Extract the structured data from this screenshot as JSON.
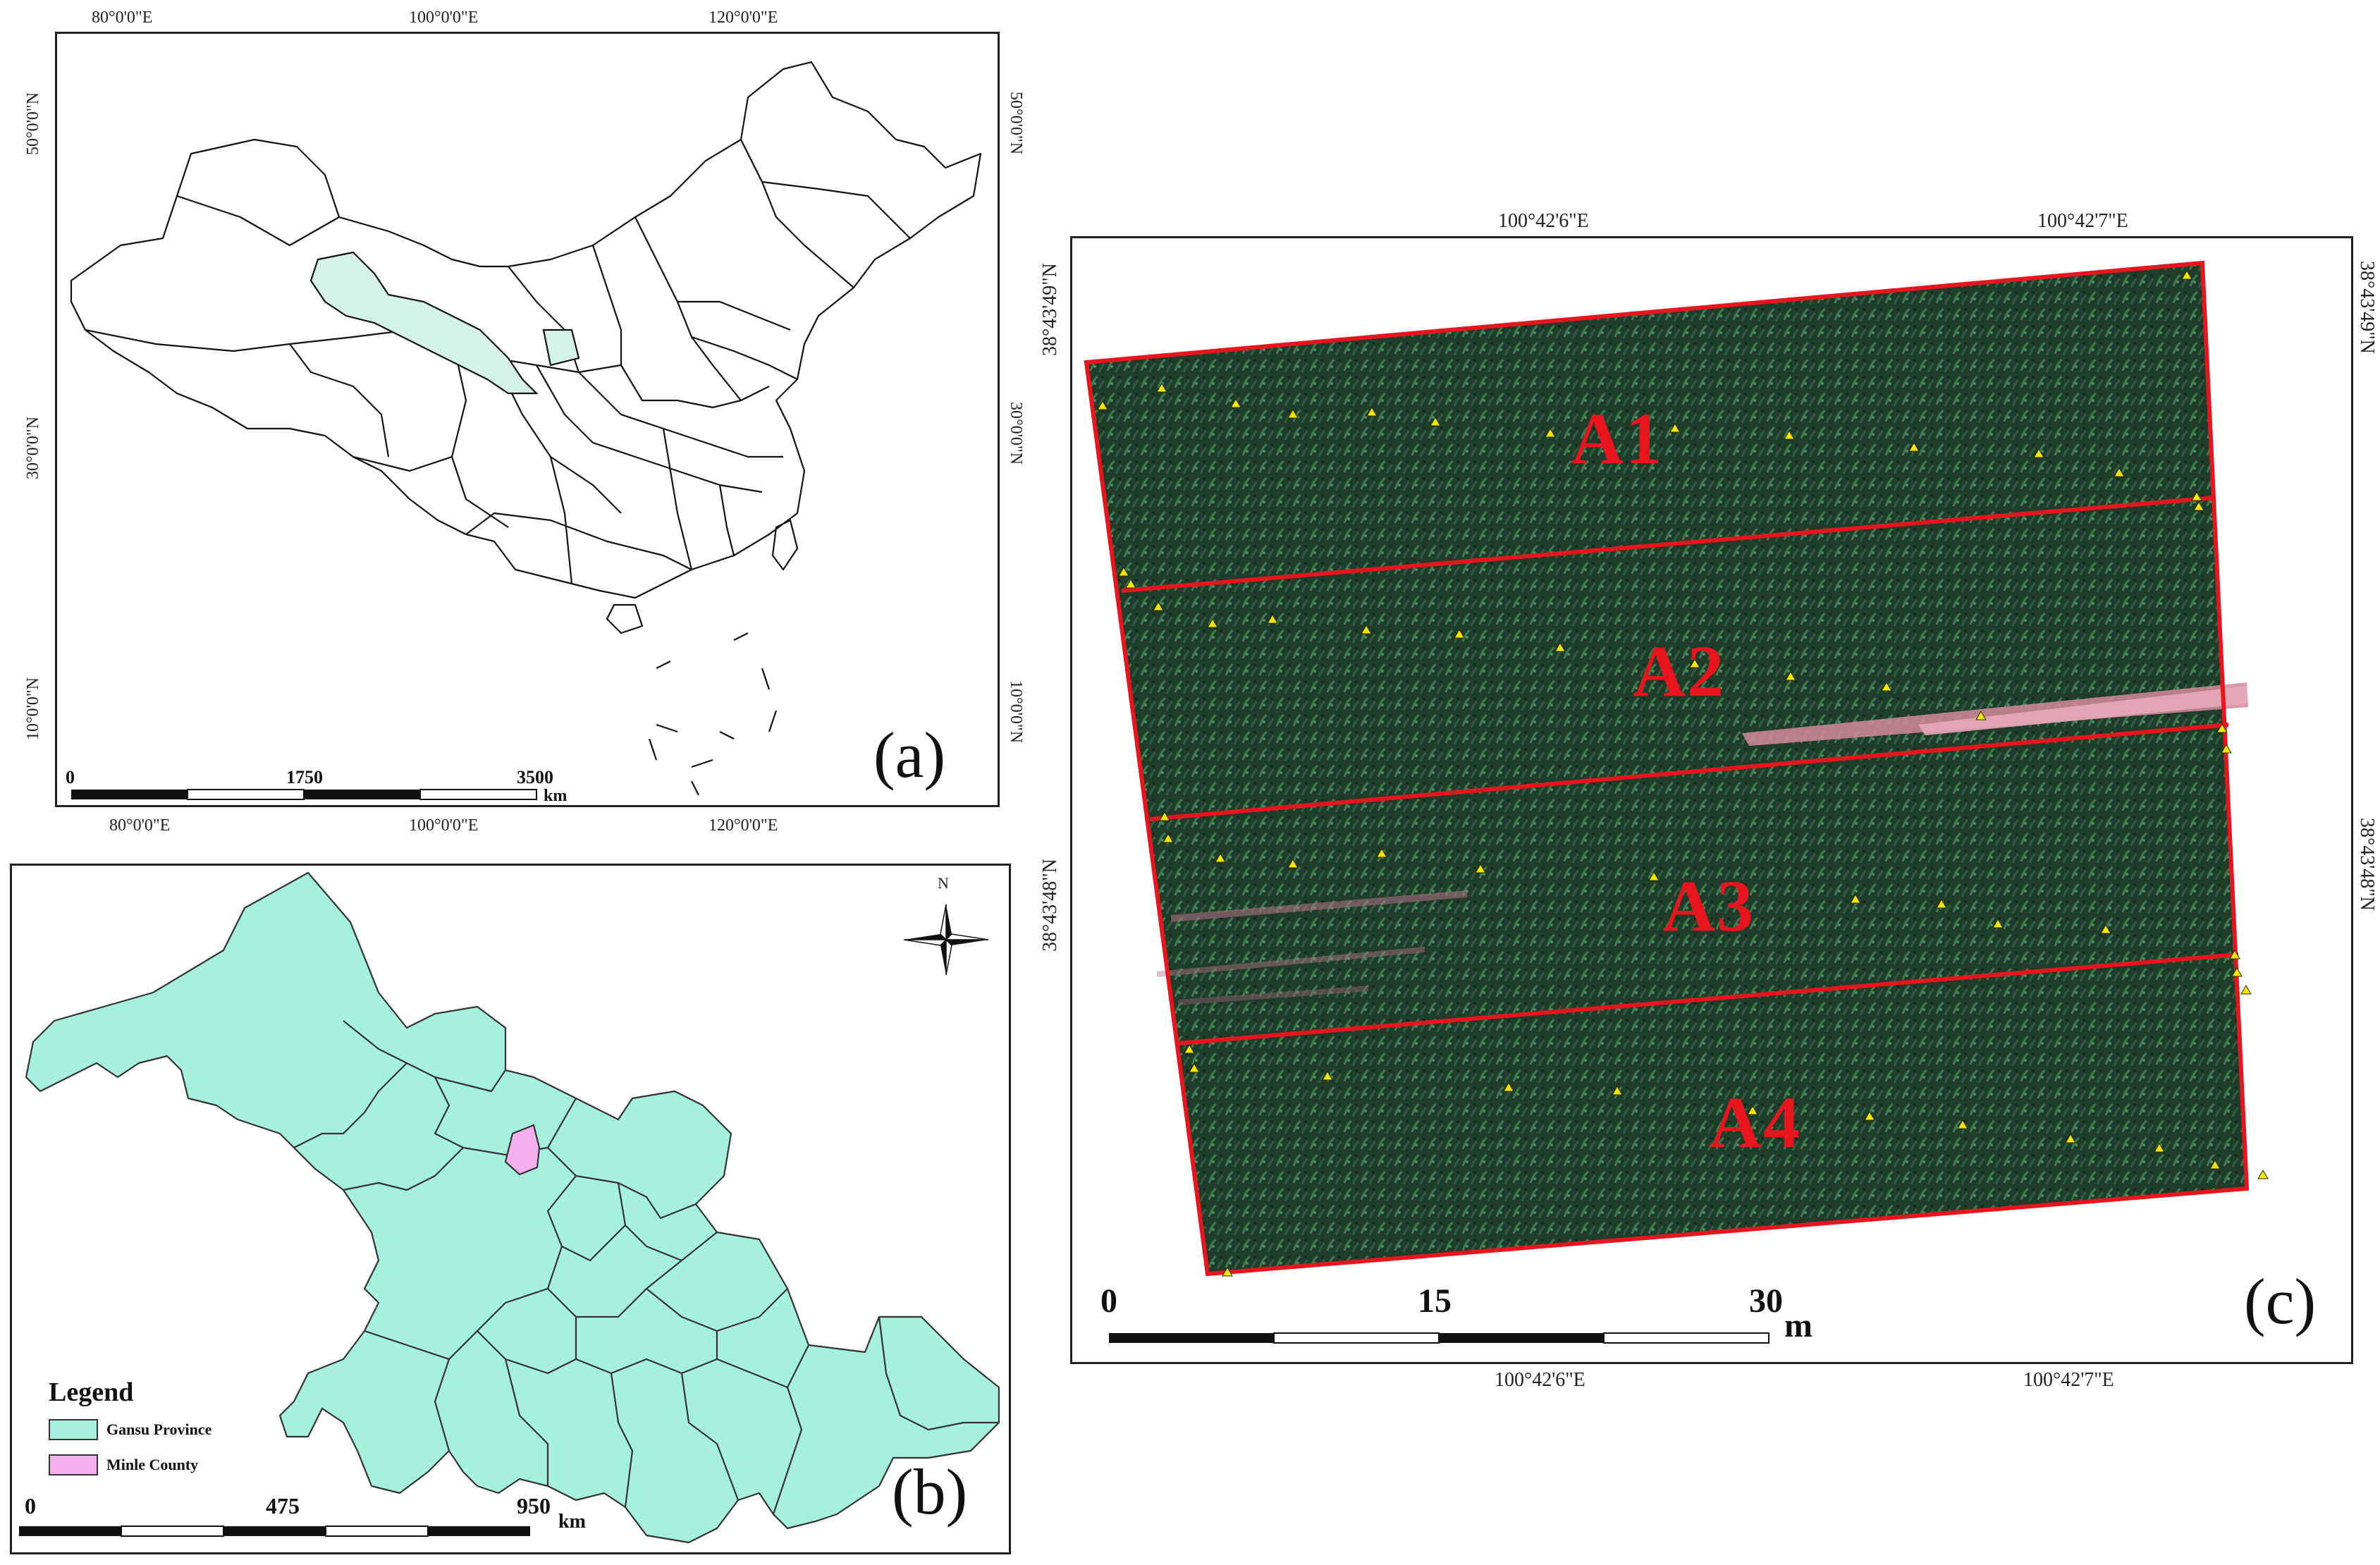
{
  "panel_a": {
    "label": "(a)",
    "top_lon": [
      "80°0'0\"E",
      "100°0'0\"E",
      "120°0'0\"E"
    ],
    "bottom_lon": [
      "80°0'0\"E",
      "100°0'0\"E",
      "120°0'0\"E"
    ],
    "lat": [
      "50°0'0\"N",
      "30°0'0\"N",
      "10°0'0\"N"
    ],
    "scale": [
      "0",
      "1750",
      "3500"
    ],
    "scale_unit": "km",
    "highlight_color": "#d4f2e6"
  },
  "panel_b": {
    "label": "(b)",
    "north": "N",
    "legend_title": "Legend",
    "legend_items": [
      {
        "label": "Gansu Province",
        "color": "#a6f0de"
      },
      {
        "label": "Minle County",
        "color": "#f5b0ee"
      }
    ],
    "scale": [
      "0",
      "475",
      "950"
    ],
    "scale_unit": "km"
  },
  "panel_c": {
    "label": "(c)",
    "top_lon": [
      "100°42'6\"E",
      "100°42'7\"E"
    ],
    "bottom_lon": [
      "100°42'6\"E",
      "100°42'7\"E"
    ],
    "lat": [
      "38°43'49\"N",
      "38°43'48\"N"
    ],
    "zones": [
      "A1",
      "A2",
      "A3",
      "A4"
    ],
    "scale": [
      "0",
      "15",
      "30"
    ],
    "scale_unit": "m",
    "boundary_color": "#e8141e",
    "marker_color": "#f2e600",
    "marker_icon": "triangle"
  }
}
